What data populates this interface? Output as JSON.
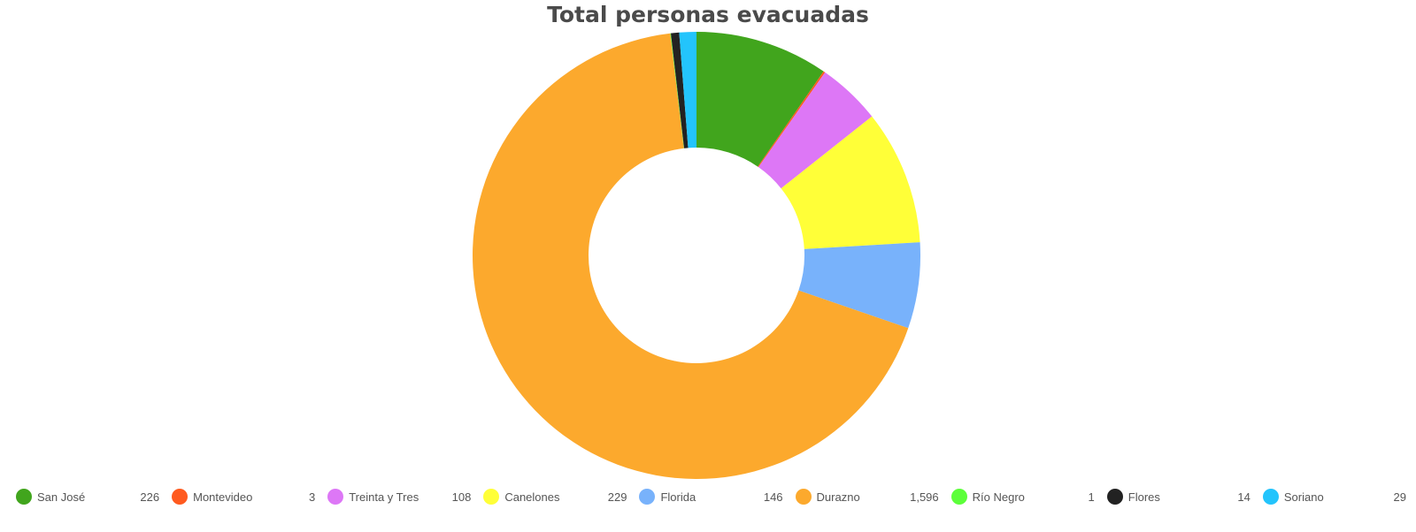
{
  "chart_data": {
    "type": "pie",
    "title": "Total personas evacuadas",
    "donut": true,
    "legend_position": "bottom",
    "categories": [
      "San José",
      "Montevideo",
      "Treinta y Tres",
      "Canelones",
      "Florida",
      "Durazno",
      "Río Negro",
      "Flores",
      "Soriano"
    ],
    "values": [
      226,
      3,
      108,
      229,
      146,
      1596,
      1,
      14,
      29
    ],
    "value_labels": [
      "226",
      "3",
      "108",
      "229",
      "146",
      "1,596",
      "1",
      "14",
      "29"
    ],
    "colors": [
      "#41a51d",
      "#ff5a1f",
      "#dd77f6",
      "#ffff38",
      "#78b2fb",
      "#fca92d",
      "#5cff3a",
      "#222222",
      "#23c4fc"
    ]
  }
}
